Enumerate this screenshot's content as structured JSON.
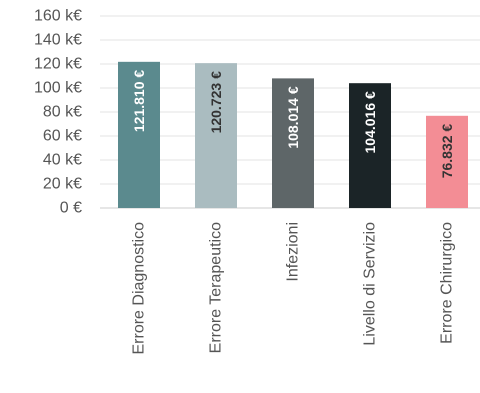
{
  "chart_data": {
    "type": "bar",
    "categories": [
      "Errore Diagnostico",
      "Errore Terapeutico",
      "Infezioni",
      "Livello di Servizio",
      "Errore Chirurgico"
    ],
    "values": [
      121810,
      120723,
      108014,
      104016,
      76832
    ],
    "value_labels": [
      "121.810 €",
      "120.723 €",
      "108.014 €",
      "104.016 €",
      "76.832 €"
    ],
    "colors": [
      "#5b8a8e",
      "#aabcc0",
      "#5e6668",
      "#1b2427",
      "#f38d95"
    ],
    "label_colors": [
      "#ffffff",
      "#333333",
      "#ffffff",
      "#ffffff",
      "#333333"
    ],
    "ylim": [
      0,
      160000
    ],
    "yticks": [
      0,
      20000,
      40000,
      60000,
      80000,
      100000,
      120000,
      140000,
      160000
    ],
    "ytick_labels": [
      "0 €",
      "20 k€",
      "40 k€",
      "60 k€",
      "80 k€",
      "100 k€",
      "120 k€",
      "140 k€",
      "160 k€"
    ],
    "grid": true,
    "title": "",
    "xlabel": "",
    "ylabel": ""
  }
}
